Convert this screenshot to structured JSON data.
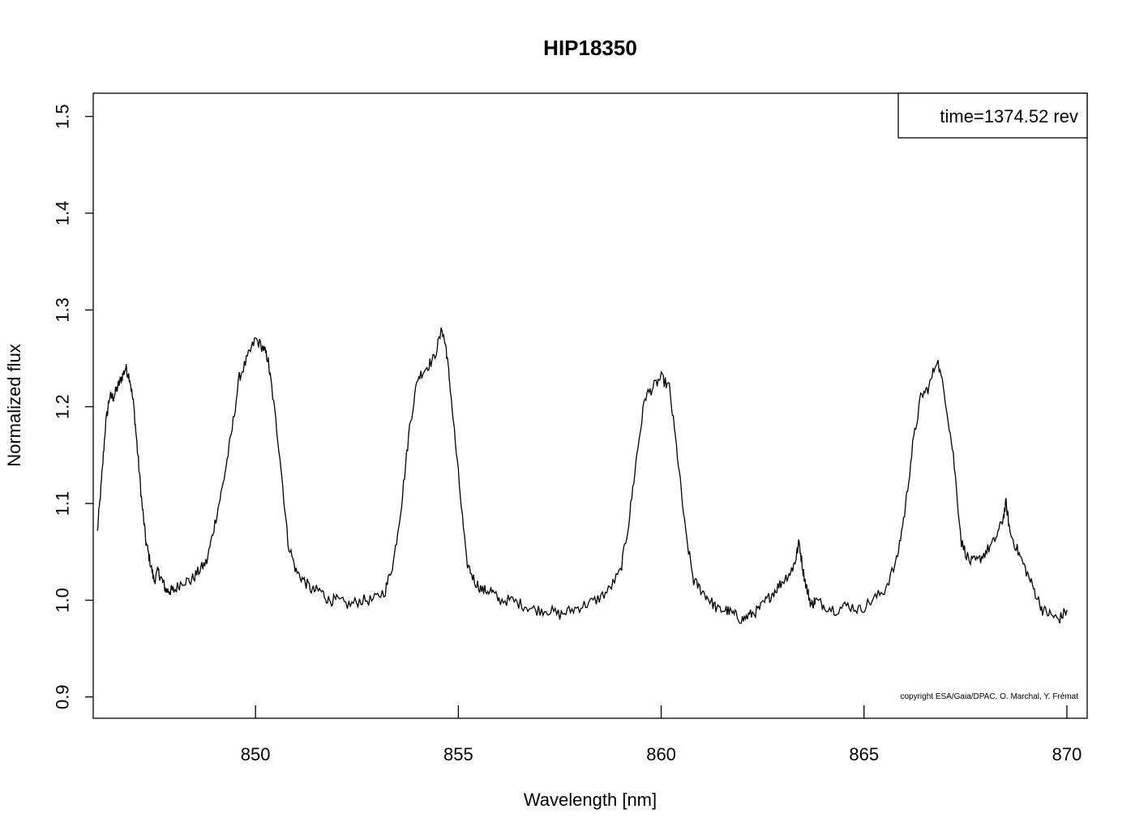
{
  "chart_data": {
    "type": "line",
    "title": "HIP18350",
    "xlabel": "Wavelength [nm]",
    "ylabel": "Normalized flux",
    "xlim": [
      846,
      870.5
    ],
    "ylim": [
      0.878,
      1.524
    ],
    "xticks": [
      850,
      855,
      860,
      865,
      870
    ],
    "xtick_labels": [
      "850",
      "855",
      "860",
      "865",
      "870"
    ],
    "yticks": [
      0.9,
      1.0,
      1.1,
      1.2,
      1.3,
      1.4,
      1.5
    ],
    "ytick_labels": [
      "0.9",
      "1.0",
      "1.1",
      "1.2",
      "1.3",
      "1.4",
      "1.5"
    ],
    "legend": {
      "text": "time=1374.52 rev",
      "position": "top-right"
    },
    "annotation": "copyright ESA/Gaia/DPAC, O. Marchal, Y. Frémat",
    "grid": false,
    "line_color": "#000000",
    "series": [
      {
        "x": [
          846.1,
          846.2,
          846.3,
          846.4,
          846.5,
          846.6,
          846.7,
          846.8,
          846.9,
          847.0,
          847.1,
          847.2,
          847.3,
          847.4,
          847.5,
          847.6,
          847.7,
          847.8,
          847.9,
          848.0,
          848.2,
          848.4,
          848.6,
          848.8,
          849.0,
          849.2,
          849.4,
          849.6,
          849.8,
          850.0,
          850.2,
          850.3,
          850.4,
          850.6,
          850.8,
          851.0,
          851.2,
          851.4,
          851.6,
          851.8,
          852.0,
          852.3,
          852.6,
          852.9,
          853.2,
          853.4,
          853.6,
          853.8,
          854.0,
          854.2,
          854.4,
          854.6,
          854.7,
          854.8,
          855.0,
          855.2,
          855.4,
          855.6,
          855.8,
          856.0,
          856.3,
          856.6,
          856.9,
          857.2,
          857.5,
          857.8,
          858.1,
          858.4,
          858.7,
          859.0,
          859.2,
          859.4,
          859.6,
          859.8,
          860.0,
          860.2,
          860.4,
          860.6,
          860.8,
          861.0,
          861.2,
          861.4,
          861.6,
          861.8,
          862.0,
          862.2,
          862.4,
          862.6,
          862.8,
          863.0,
          863.2,
          863.3,
          863.4,
          863.5,
          863.6,
          863.7,
          863.8,
          864.0,
          864.3,
          864.6,
          864.9,
          865.2,
          865.5,
          865.8,
          866.0,
          866.2,
          866.4,
          866.6,
          866.8,
          867.0,
          867.2,
          867.4,
          867.6,
          867.8,
          868.0,
          868.2,
          868.4,
          868.5,
          868.6,
          868.8,
          869.0,
          869.2,
          869.4,
          869.6,
          869.8,
          870.0
        ],
        "y": [
          1.07,
          1.12,
          1.18,
          1.21,
          1.21,
          1.22,
          1.23,
          1.24,
          1.23,
          1.2,
          1.15,
          1.1,
          1.06,
          1.04,
          1.02,
          1.03,
          1.02,
          1.01,
          1.01,
          1.01,
          1.02,
          1.02,
          1.03,
          1.04,
          1.08,
          1.12,
          1.17,
          1.23,
          1.25,
          1.27,
          1.26,
          1.25,
          1.22,
          1.15,
          1.06,
          1.03,
          1.02,
          1.01,
          1.01,
          1.0,
          1.0,
          0.995,
          1.0,
          1.0,
          1.01,
          1.04,
          1.1,
          1.18,
          1.23,
          1.24,
          1.25,
          1.28,
          1.26,
          1.22,
          1.13,
          1.04,
          1.02,
          1.01,
          1.01,
          1.0,
          1.0,
          0.995,
          0.99,
          0.99,
          0.985,
          0.99,
          0.995,
          1.0,
          1.01,
          1.03,
          1.08,
          1.15,
          1.21,
          1.22,
          1.23,
          1.22,
          1.15,
          1.07,
          1.02,
          1.01,
          1.0,
          0.99,
          0.99,
          0.985,
          0.98,
          0.985,
          0.99,
          1.0,
          1.01,
          1.02,
          1.03,
          1.04,
          1.06,
          1.03,
          1.01,
          0.995,
          1.0,
          0.995,
          0.99,
          0.995,
          0.99,
          1.0,
          1.01,
          1.04,
          1.09,
          1.16,
          1.21,
          1.22,
          1.25,
          1.21,
          1.15,
          1.06,
          1.04,
          1.04,
          1.05,
          1.06,
          1.08,
          1.1,
          1.07,
          1.05,
          1.03,
          1.01,
          0.99,
          0.985,
          0.98,
          0.99
        ]
      }
    ]
  }
}
